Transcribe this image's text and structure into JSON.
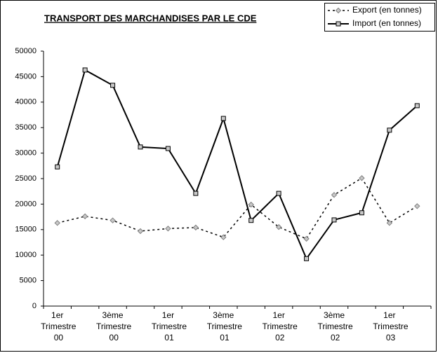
{
  "chart_data": {
    "type": "line",
    "title": "TRANSPORT DES MARCHANDISES PAR LE CDE",
    "categories": [
      "1er Trimestre 00",
      null,
      "3ème Trimestre 00",
      null,
      "1er Trimestre 01",
      null,
      "3ème Trimestre 01",
      null,
      "1er Trimestre 02",
      null,
      "3ème Trimestre 02",
      null,
      "1er Trimestre 03",
      null
    ],
    "series": [
      {
        "name": "Export (en tonnes)",
        "color": "#000000",
        "dash": true,
        "values": [
          16300,
          17600,
          16800,
          14700,
          15200,
          15400,
          13500,
          19900,
          15500,
          13200,
          21800,
          25100,
          16300,
          19600
        ]
      },
      {
        "name": "Import (en tonnes)",
        "color": "#000000",
        "dash": false,
        "values": [
          27300,
          46300,
          43300,
          31200,
          30900,
          22100,
          36800,
          16800,
          22100,
          9300,
          16900,
          18300,
          34500,
          39300
        ]
      }
    ],
    "ylim": [
      0,
      50000
    ],
    "yticks": [
      0,
      5000,
      10000,
      15000,
      20000,
      25000,
      30000,
      35000,
      40000,
      45000,
      50000
    ],
    "grid": false,
    "legend": "top-right"
  }
}
